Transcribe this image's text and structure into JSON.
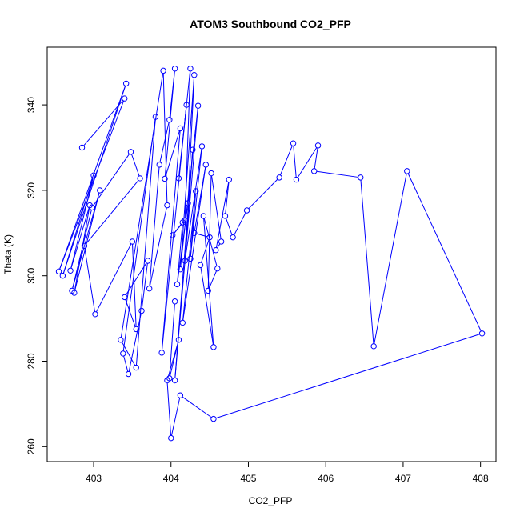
{
  "chart_data": {
    "type": "scatter",
    "title": "ATOM3 Southbound CO2_PFP",
    "xlabel": "CO2_PFP",
    "ylabel": "Theta (K)",
    "xlim": [
      402.4,
      408.2
    ],
    "ylim": [
      256.5,
      353.5
    ],
    "xticks": [
      403,
      404,
      405,
      406,
      407,
      408
    ],
    "yticks": [
      260,
      280,
      300,
      320,
      340
    ],
    "grid": false,
    "legend": "none",
    "mode": "lines+markers",
    "color": "#0000ff",
    "x": [
      402.85,
      403.4,
      402.55,
      403.42,
      402.6,
      403.0,
      402.7,
      402.95,
      402.75,
      403.08,
      402.72,
      402.98,
      403.48,
      403.6,
      402.88,
      403.02,
      403.5,
      403.55,
      403.4,
      403.7,
      403.62,
      403.45,
      403.38,
      403.8,
      403.55,
      403.35,
      403.9,
      403.95,
      403.72,
      403.85,
      403.98,
      404.05,
      403.92,
      404.12,
      403.88,
      404.2,
      404.1,
      404.25,
      404.18,
      404.02,
      404.15,
      404.08,
      404.22,
      404.3,
      404.12,
      404.35,
      404.05,
      404.28,
      404.18,
      404.4,
      404.25,
      404.32,
      404.15,
      404.45,
      404.3,
      404.5,
      404.38,
      404.55,
      404.42,
      404.6,
      404.48,
      404.52,
      404.65,
      404.58,
      404.75,
      404.7,
      404.8,
      404.98,
      405.4,
      405.58,
      405.62,
      405.9,
      405.85,
      406.45,
      406.62,
      407.05,
      408.02,
      404.55,
      404.12,
      404.0,
      403.95,
      404.1,
      403.98,
      404.05
    ],
    "y": [
      330,
      341.5,
      301,
      345,
      300,
      323.5,
      301.2,
      316.5,
      296,
      320,
      296.5,
      316,
      329,
      322.8,
      307,
      291,
      308,
      287.5,
      295,
      303.5,
      291.8,
      277,
      281.8,
      337.2,
      278.5,
      285,
      348,
      316.5,
      297,
      326,
      336.5,
      348.5,
      322.7,
      334.5,
      282,
      340,
      322.8,
      348.5,
      313,
      309.5,
      312.5,
      298,
      317,
      347,
      301.5,
      339.8,
      275.5,
      329.5,
      303.5,
      330.3,
      304,
      319.8,
      289,
      326,
      310,
      309,
      302.5,
      283.3,
      314,
      301.7,
      296.5,
      324,
      308,
      306,
      322.5,
      314,
      309,
      315.3,
      323,
      331,
      322.5,
      330.5,
      324.5,
      323,
      283.5,
      324.5,
      286.5,
      266.5,
      272,
      262,
      275.5,
      285,
      276,
      294
    ]
  }
}
